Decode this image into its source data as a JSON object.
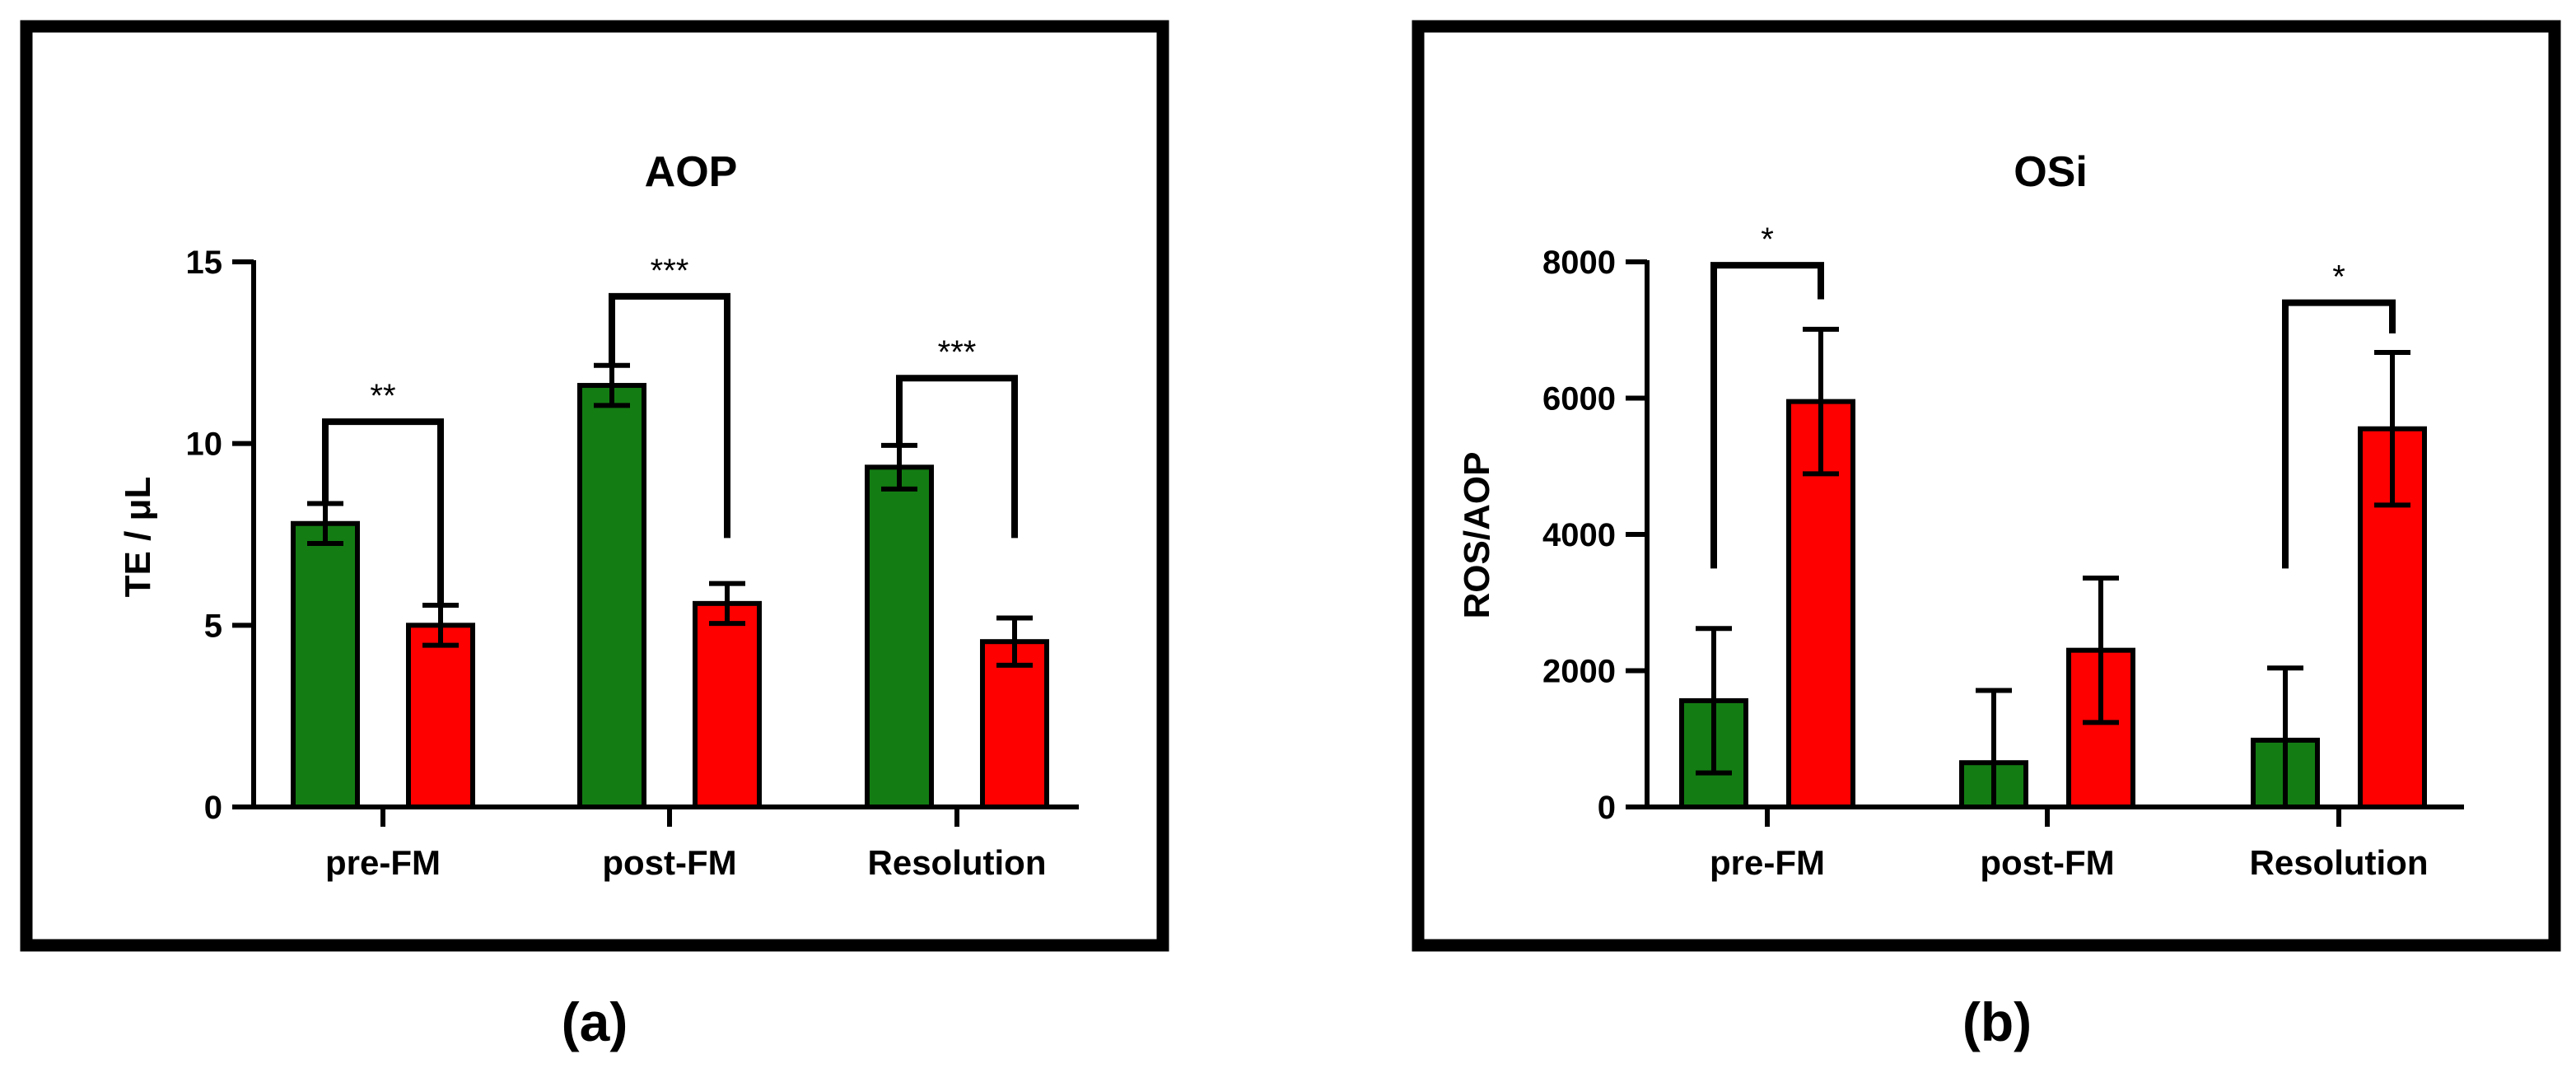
{
  "chart_data": [
    {
      "type": "bar",
      "title": "AOP",
      "xlabel": "",
      "ylabel": "TE / μL",
      "ylim": [
        0,
        15
      ],
      "yticks": [
        0,
        5,
        10,
        15
      ],
      "categories": [
        "pre-FM",
        "post-FM",
        "Resolution"
      ],
      "series": [
        {
          "name": "green",
          "color": "#137d13",
          "values": [
            7.8,
            11.6,
            9.35
          ],
          "errors": [
            0.55,
            0.55,
            0.6
          ]
        },
        {
          "name": "red",
          "color": "#ff0000",
          "values": [
            5.0,
            5.6,
            4.55
          ],
          "errors": [
            0.55,
            0.55,
            0.65
          ]
        }
      ],
      "significance": [
        {
          "category": 0,
          "label": "**",
          "bracket_y": 10.6,
          "left_end": 8.4,
          "right_end": 5.6
        },
        {
          "category": 1,
          "label": "***",
          "bracket_y": 14.05,
          "left_end": 12.2,
          "right_end": 7.4
        },
        {
          "category": 2,
          "label": "***",
          "bracket_y": 11.8,
          "left_end": 9.95,
          "right_end": 7.4
        }
      ],
      "panel_label": "(a)"
    },
    {
      "type": "bar",
      "title": "OSi",
      "xlabel": "",
      "ylabel": "ROS/AOP",
      "ylim": [
        0,
        8000
      ],
      "yticks": [
        0,
        2000,
        4000,
        6000,
        8000
      ],
      "categories": [
        "pre-FM",
        "post-FM",
        "Resolution"
      ],
      "series": [
        {
          "name": "green",
          "color": "#137d13",
          "values": [
            1560,
            650,
            980
          ],
          "errors": [
            1060,
            1060,
            1060
          ]
        },
        {
          "name": "red",
          "color": "#ff0000",
          "values": [
            5950,
            2300,
            5550
          ],
          "errors": [
            1060,
            1060,
            1120
          ]
        }
      ],
      "significance": [
        {
          "category": 0,
          "label": "*",
          "bracket_y": 7950,
          "left_end": 3500,
          "right_end": 7450
        },
        {
          "category": 2,
          "label": "*",
          "bracket_y": 7400,
          "left_end": 3500,
          "right_end": 6950
        }
      ],
      "panel_label": "(b)"
    }
  ]
}
